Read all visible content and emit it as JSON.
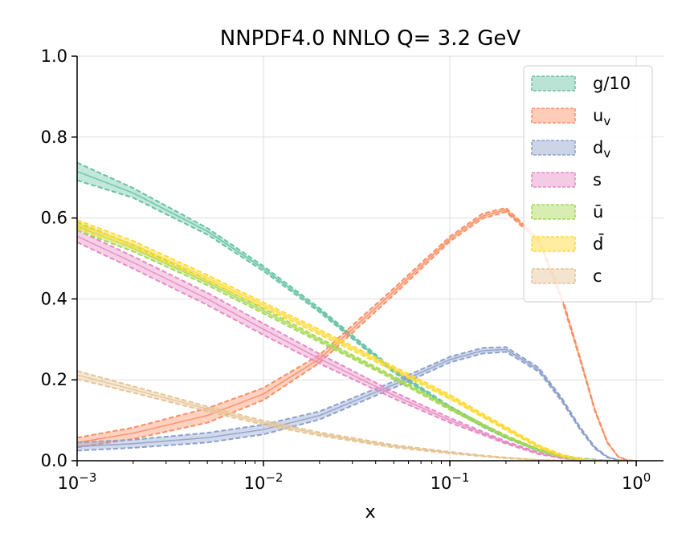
{
  "chart_data": {
    "type": "area",
    "title": "NNPDF4.0 NNLO Q= 3.2 GeV",
    "xlabel": "x",
    "ylabel": "",
    "xscale": "log",
    "xlim": [
      0.001,
      1.4
    ],
    "ylim": [
      0.0,
      1.0
    ],
    "grid": true,
    "legend_position": "top-right",
    "x_ticks": [
      {
        "base": "10",
        "exp": "−3"
      },
      {
        "base": "10",
        "exp": "−2"
      },
      {
        "base": "10",
        "exp": "−1"
      },
      {
        "base": "10",
        "exp": "0"
      }
    ],
    "y_ticks": [
      "0.0",
      "0.2",
      "0.4",
      "0.6",
      "0.8",
      "1.0"
    ],
    "x": [
      0.001,
      0.002,
      0.005,
      0.01,
      0.02,
      0.05,
      0.1,
      0.15,
      0.2,
      0.3,
      0.4,
      0.5,
      0.6,
      0.7,
      0.8,
      0.9,
      1.0
    ],
    "series": [
      {
        "name": "g/10",
        "legend_text": "g/10",
        "color": "#66c2a5",
        "values": [
          0.715,
          0.662,
          0.567,
          0.475,
          0.372,
          0.222,
          0.132,
          0.087,
          0.058,
          0.026,
          0.012,
          0.005,
          0.002,
          0.0007,
          0.0002,
          3e-05,
          0.0
        ],
        "errors": [
          0.022,
          0.012,
          0.008,
          0.006,
          0.005,
          0.004,
          0.003,
          0.003,
          0.002,
          0.002,
          0.001,
          0.001,
          0.001,
          0.0,
          0.0,
          0.0,
          0.0
        ]
      },
      {
        "name": "u_v",
        "legend_base": "u",
        "legend_sub": "v",
        "color": "#fc8d62",
        "values": [
          0.045,
          0.068,
          0.112,
          0.165,
          0.252,
          0.418,
          0.548,
          0.605,
          0.62,
          0.545,
          0.4,
          0.252,
          0.125,
          0.045,
          0.01,
          0.001,
          0.0
        ],
        "errors": [
          0.012,
          0.014,
          0.018,
          0.015,
          0.01,
          0.008,
          0.006,
          0.006,
          0.005,
          0.004,
          0.004,
          0.003,
          0.002,
          0.001,
          0.0,
          0.0,
          0.0
        ]
      },
      {
        "name": "d_v",
        "legend_base": "d",
        "legend_sub": "v",
        "color": "#8da0cb",
        "values": [
          0.035,
          0.042,
          0.057,
          0.077,
          0.112,
          0.188,
          0.25,
          0.272,
          0.275,
          0.225,
          0.15,
          0.08,
          0.032,
          0.009,
          0.0015,
          0.0001,
          0.0
        ],
        "errors": [
          0.01,
          0.01,
          0.012,
          0.012,
          0.01,
          0.008,
          0.007,
          0.007,
          0.006,
          0.005,
          0.004,
          0.003,
          0.002,
          0.001,
          0.0,
          0.0,
          0.0
        ]
      },
      {
        "name": "s",
        "legend_text": "s",
        "color": "#e78ac3",
        "values": [
          0.555,
          0.49,
          0.4,
          0.325,
          0.252,
          0.162,
          0.1,
          0.068,
          0.045,
          0.018,
          0.007,
          0.002,
          0.0005,
          0.0001,
          0.0,
          0.0,
          0.0
        ],
        "errors": [
          0.015,
          0.015,
          0.015,
          0.014,
          0.012,
          0.008,
          0.006,
          0.004,
          0.003,
          0.002,
          0.001,
          0.0,
          0.0,
          0.0,
          0.0,
          0.0,
          0.0
        ]
      },
      {
        "name": "ū",
        "legend_text": "ū",
        "color": "#a6d854",
        "values": [
          0.58,
          0.525,
          0.44,
          0.37,
          0.298,
          0.205,
          0.13,
          0.088,
          0.06,
          0.026,
          0.01,
          0.003,
          0.001,
          0.0002,
          0.0,
          0.0,
          0.0
        ],
        "errors": [
          0.01,
          0.008,
          0.006,
          0.006,
          0.005,
          0.004,
          0.004,
          0.003,
          0.003,
          0.002,
          0.001,
          0.0,
          0.0,
          0.0,
          0.0,
          0.0,
          0.0
        ]
      },
      {
        "name": "d̄",
        "legend_text": "d̄",
        "color": "#ffd92f",
        "values": [
          0.585,
          0.535,
          0.452,
          0.385,
          0.318,
          0.228,
          0.158,
          0.112,
          0.08,
          0.035,
          0.013,
          0.004,
          0.001,
          0.0002,
          0.0,
          0.0,
          0.0
        ],
        "errors": [
          0.01,
          0.008,
          0.007,
          0.006,
          0.006,
          0.005,
          0.005,
          0.004,
          0.004,
          0.003,
          0.002,
          0.001,
          0.0,
          0.0,
          0.0,
          0.0,
          0.0
        ]
      },
      {
        "name": "c",
        "legend_text": "c",
        "color": "#e5c494",
        "values": [
          0.212,
          0.176,
          0.128,
          0.094,
          0.066,
          0.036,
          0.02,
          0.012,
          0.007,
          0.002,
          0.0006,
          0.0001,
          0.0,
          0.0,
          0.0,
          0.0,
          0.0
        ],
        "errors": [
          0.01,
          0.008,
          0.006,
          0.005,
          0.004,
          0.003,
          0.002,
          0.001,
          0.001,
          0.0,
          0.0,
          0.0,
          0.0,
          0.0,
          0.0,
          0.0,
          0.0
        ]
      }
    ]
  }
}
